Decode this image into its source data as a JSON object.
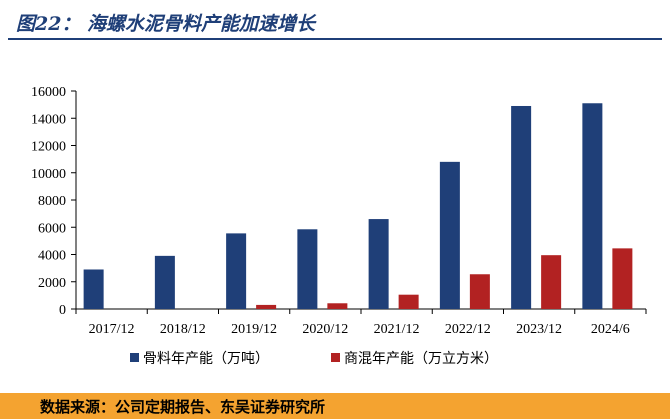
{
  "figure": {
    "title": "图22： 海螺水泥骨料产能加速增长",
    "source": "数据来源：公司定期报告、东吴证券研究所"
  },
  "colors": {
    "title": "#1f3f78",
    "series_1": "#1f3f78",
    "series_2": "#b22222",
    "source_bar": "#f4a330"
  },
  "chart_data": {
    "type": "bar",
    "categories": [
      "2017/12",
      "2018/12",
      "2019/12",
      "2020/12",
      "2021/12",
      "2022/12",
      "2023/12",
      "2024/6"
    ],
    "series": [
      {
        "name": "骨料年产能（万吨）",
        "values": [
          2900,
          3900,
          5550,
          5850,
          6600,
          10800,
          14900,
          15100
        ]
      },
      {
        "name": "商混年产能（万立方米）",
        "values": [
          0,
          0,
          300,
          420,
          1050,
          2550,
          3950,
          4450
        ]
      }
    ],
    "ylim": [
      0,
      16000
    ],
    "yticks": [
      "0",
      "2000",
      "4000",
      "6000",
      "8000",
      "10000",
      "12000",
      "14000",
      "16000"
    ],
    "grid": false,
    "legend": "bottom"
  }
}
